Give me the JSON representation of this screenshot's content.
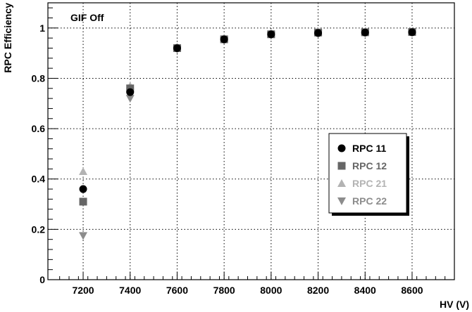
{
  "chart_data": {
    "type": "scatter",
    "title": "",
    "annotation": "GIF Off",
    "xlabel": "HV (V)",
    "ylabel": "RPC Efficiency",
    "xlim": [
      7050,
      8780
    ],
    "ylim": [
      0,
      1.1
    ],
    "x_ticks": [
      7200,
      7400,
      7600,
      7800,
      8000,
      8200,
      8400,
      8600
    ],
    "y_ticks": [
      0,
      0.2,
      0.4,
      0.6,
      0.8,
      1
    ],
    "y_tick_labels": [
      "0",
      "0.2",
      "0.4",
      "0.6",
      "0.8",
      "1"
    ],
    "grid": true,
    "legend_position": "right",
    "series": [
      {
        "name": "RPC 11",
        "marker": "circle",
        "color": "#000000",
        "x": [
          7200,
          7400,
          7600,
          7800,
          8000,
          8200,
          8400,
          8600
        ],
        "y": [
          0.36,
          0.745,
          0.92,
          0.955,
          0.975,
          0.98,
          0.982,
          0.983
        ]
      },
      {
        "name": "RPC 12",
        "marker": "square",
        "color": "#666666",
        "x": [
          7200,
          7400,
          7600,
          7800,
          8000,
          8200,
          8400,
          8600
        ],
        "y": [
          0.31,
          0.76,
          0.92,
          0.955,
          0.975,
          0.982,
          0.983,
          0.984
        ]
      },
      {
        "name": "RPC 21",
        "marker": "triangle-up",
        "color": "#b3b3b3",
        "x": [
          7200,
          7400,
          7600,
          7800,
          8000,
          8200,
          8400,
          8600
        ],
        "y": [
          0.43,
          0.77,
          0.925,
          0.96,
          0.978,
          0.985,
          0.986,
          0.987
        ]
      },
      {
        "name": "RPC 22",
        "marker": "triangle-down",
        "color": "#8c8c8c",
        "x": [
          7200,
          7400,
          7600,
          7800,
          8000,
          8200,
          8400,
          8600
        ],
        "y": [
          0.175,
          0.72,
          0.915,
          0.95,
          0.97,
          0.978,
          0.98,
          0.982
        ]
      }
    ]
  }
}
